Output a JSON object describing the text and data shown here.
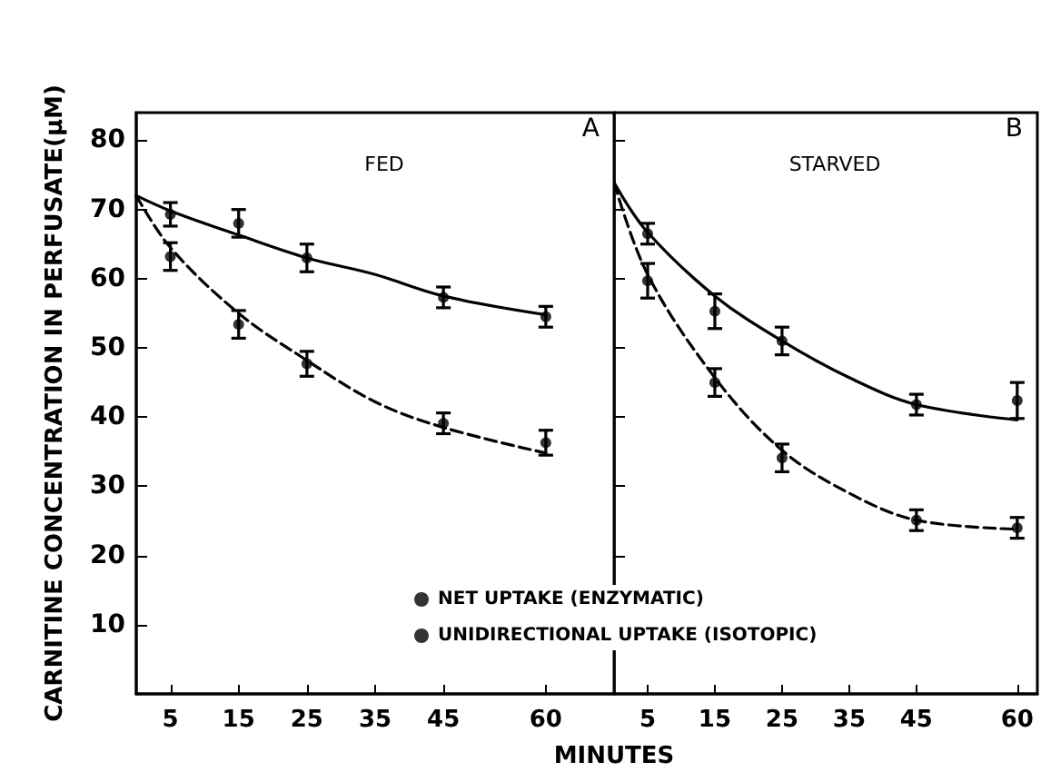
{
  "chart_data": [
    {
      "type": "scatter",
      "title": "FED",
      "annotations": [
        "A"
      ],
      "xlabel": "MINUTES",
      "ylabel": "CARNITINE CONCENTRATION IN PERFUSATE(µM)",
      "xlim": [
        0,
        70
      ],
      "xticks": [
        5,
        15,
        25,
        35,
        45,
        60
      ],
      "ylim": [
        0,
        84
      ],
      "yticks": [
        10,
        20,
        30,
        40,
        50,
        60,
        70,
        80
      ],
      "legend": "bottom right",
      "marker": "circle",
      "grid": false,
      "series": [
        {
          "name": "NET UPTAKE (ENZYMATIC)",
          "color": "#000000",
          "x": [
            5,
            15,
            25,
            45,
            60
          ],
          "values": [
            69.3,
            68,
            63,
            57.3,
            54.5
          ],
          "errors": [
            1.7,
            2,
            2,
            1.5,
            1.5
          ]
        },
        {
          "name": "UNIDIRECTIONAL UPTAKE (ISOTOPIC)",
          "color": "#000000",
          "x": [
            5,
            15,
            25,
            45,
            60
          ],
          "values": [
            63.2,
            53.4,
            47.7,
            39.1,
            36.3
          ],
          "errors": [
            2,
            2,
            1.8,
            1.5,
            1.8
          ]
        },
        {
          "type": "line",
          "color": "#000000",
          "line_style": "solid",
          "marker": "none",
          "x": [
            0,
            5,
            15,
            25,
            35,
            45,
            60
          ],
          "values": [
            72,
            69.8,
            66.3,
            63,
            60.6,
            57.5,
            54.8
          ]
        },
        {
          "type": "line",
          "color": "#000000",
          "line_style": "dashed",
          "marker": "none",
          "x": [
            0,
            5,
            15,
            25,
            35,
            45,
            60
          ],
          "values": [
            72,
            64.5,
            55,
            48.2,
            42.2,
            38.5,
            34.8
          ]
        }
      ]
    },
    {
      "type": "scatter",
      "title": "STARVED",
      "annotations": [
        "B"
      ],
      "xlim": [
        0,
        63
      ],
      "xticks": [
        5,
        15,
        25,
        35,
        45,
        60
      ],
      "ylim": [
        0,
        84
      ],
      "yticks": [
        10,
        20,
        30,
        40,
        50,
        60,
        70,
        80
      ],
      "tick_labels": "x",
      "marker": "circle",
      "grid": false,
      "series": [
        {
          "color": "#000000",
          "x": [
            5,
            15,
            25,
            45,
            60
          ],
          "values": [
            66.5,
            55.3,
            51,
            41.8,
            42.4
          ],
          "errors": [
            1.5,
            2.5,
            2,
            1.5,
            2.6
          ]
        },
        {
          "color": "#000000",
          "x": [
            5,
            15,
            25,
            45,
            60
          ],
          "values": [
            59.7,
            45,
            34.1,
            25.1,
            24
          ],
          "errors": [
            2.5,
            2,
            2,
            1.5,
            1.5
          ]
        },
        {
          "type": "line",
          "color": "#000000",
          "line_style": "solid",
          "marker": "none",
          "x": [
            0,
            5,
            15,
            25,
            35,
            45,
            60
          ],
          "values": [
            73.9,
            66.7,
            57.5,
            51,
            45.7,
            41.8,
            39.6
          ]
        },
        {
          "type": "line",
          "color": "#000000",
          "line_style": "dashed",
          "marker": "none",
          "x": [
            0,
            5,
            15,
            25,
            35,
            45,
            60
          ],
          "values": [
            73.9,
            60.6,
            45.7,
            35.2,
            29,
            25.1,
            23.8
          ]
        }
      ]
    }
  ]
}
